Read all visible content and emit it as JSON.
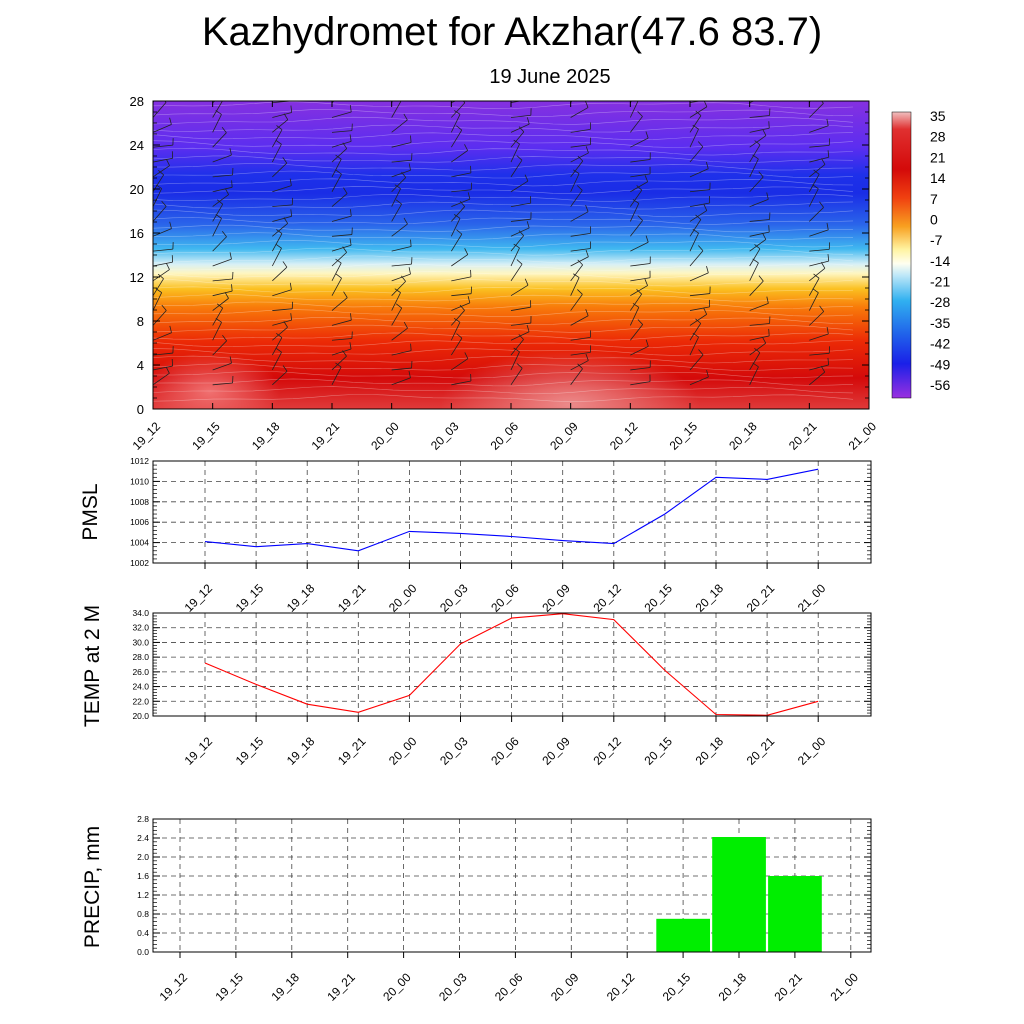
{
  "header": {
    "title": "Kazhydromet for Akzhar(47.6 83.7)",
    "subtitle": "19 June 2025"
  },
  "chart_data": [
    {
      "type": "heatmap",
      "x_categories": [
        "19_12",
        "19_15",
        "19_18",
        "19_21",
        "20_00",
        "20_03",
        "20_06",
        "20_09",
        "20_12",
        "20_15",
        "20_18",
        "20_21",
        "21_00"
      ],
      "y_ticks": [
        "0",
        "4",
        "8",
        "12",
        "16",
        "20",
        "24",
        "28"
      ],
      "ylim": [
        0,
        28
      ],
      "colorbar_labels": [
        "35",
        "28",
        "21",
        "14",
        "7",
        "0",
        "-7",
        "-14",
        "-21",
        "-28",
        "-35",
        "-42",
        "-49",
        "-56"
      ],
      "colorbar_range": [
        -60,
        38
      ],
      "colors": {
        "top": "#7f2de0",
        "cold": "#1a2de6",
        "freezing": "#fffde0",
        "warm": "#f0a020",
        "hot": "#d40a0a"
      },
      "wind_barbs": true
    },
    {
      "type": "line",
      "ylabel": "PMSL",
      "x_categories": [
        "19_12",
        "19_15",
        "19_18",
        "19_21",
        "20_00",
        "20_03",
        "20_06",
        "20_09",
        "20_12",
        "20_15",
        "20_18",
        "20_21",
        "21_00"
      ],
      "values": [
        1004.1,
        1003.6,
        1003.9,
        1003.2,
        1005.1,
        1004.9,
        1004.6,
        1004.2,
        1003.9,
        1006.8,
        1010.4,
        1010.2,
        1011.2
      ],
      "y_ticks": [
        "1002",
        "1004",
        "1006",
        "1008",
        "1010",
        "1012"
      ],
      "ylim": [
        1002,
        1012
      ],
      "color": "#0000ff",
      "grid": true
    },
    {
      "type": "line",
      "ylabel": "TEMP at 2 M",
      "x_categories": [
        "19_12",
        "19_15",
        "19_18",
        "19_21",
        "20_00",
        "20_03",
        "20_06",
        "20_09",
        "20_12",
        "20_15",
        "20_18",
        "20_21",
        "21_00"
      ],
      "values": [
        27.2,
        24.3,
        21.6,
        20.5,
        22.8,
        29.8,
        33.3,
        33.9,
        33.1,
        26.2,
        20.2,
        20.1,
        22.0
      ],
      "y_ticks": [
        "20.0",
        "22.0",
        "24.0",
        "26.0",
        "28.0",
        "30.0",
        "32.0",
        "34.0"
      ],
      "ylim": [
        20,
        34
      ],
      "color": "#ff0000",
      "grid": true
    },
    {
      "type": "bar",
      "ylabel": "PRECIP, mm",
      "x_categories": [
        "19_12",
        "19_15",
        "19_18",
        "19_21",
        "20_00",
        "20_03",
        "20_06",
        "20_09",
        "20_12",
        "20_15",
        "20_18",
        "20_21",
        "21_00"
      ],
      "values": [
        0,
        0,
        0,
        0,
        0,
        0,
        0,
        0,
        0,
        0.7,
        2.42,
        1.6,
        0
      ],
      "y_ticks": [
        "0.0",
        "0.4",
        "0.8",
        "1.2",
        "1.6",
        "2.0",
        "2.4",
        "2.8"
      ],
      "ylim": [
        0,
        2.8
      ],
      "color": "#00ee00",
      "grid": true
    }
  ]
}
